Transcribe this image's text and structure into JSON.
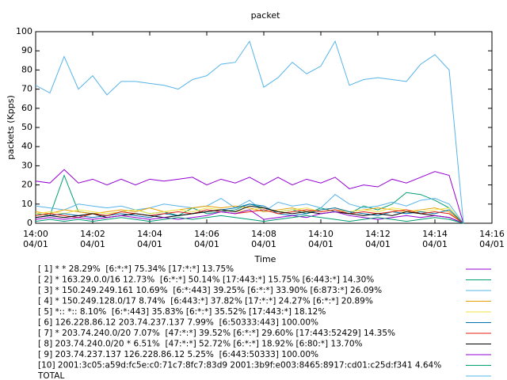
{
  "chart_data": {
    "type": "line",
    "title": "packet",
    "xlabel": "Time",
    "ylabel": "packets (Kpps)",
    "x": [
      0,
      0.5,
      1,
      1.5,
      2,
      2.5,
      3,
      3.5,
      4,
      4.5,
      5,
      5.5,
      6,
      6.5,
      7,
      7.5,
      8,
      8.5,
      9,
      9.5,
      10,
      10.5,
      11,
      11.5,
      12,
      12.5,
      13,
      13.5,
      14,
      14.5,
      15
    ],
    "xlim": [
      0,
      16
    ],
    "xticks": [
      {
        "value": 0,
        "label": "14:00\n04/01"
      },
      {
        "value": 2,
        "label": "14:02\n04/01"
      },
      {
        "value": 4,
        "label": "14:04\n04/01"
      },
      {
        "value": 6,
        "label": "14:06\n04/01"
      },
      {
        "value": 8,
        "label": "14:08\n04/01"
      },
      {
        "value": 10,
        "label": "14:10\n04/01"
      },
      {
        "value": 12,
        "label": "14:12\n04/01"
      },
      {
        "value": 14,
        "label": "14:14\n04/01"
      },
      {
        "value": 16,
        "label": "14:16\n04/01"
      }
    ],
    "ylim": [
      0,
      100
    ],
    "yticks": [
      0,
      10,
      20,
      30,
      40,
      50,
      60,
      70,
      80,
      90,
      100
    ],
    "series": [
      {
        "name": "[ 1] * * 28.29%  [6:*:*] 75.34% [17:*:*] 13.75%",
        "color": "#9400d3",
        "values": [
          22,
          21,
          28,
          21,
          23,
          20,
          23,
          20,
          23,
          22,
          23,
          24,
          20,
          23,
          21,
          24,
          20,
          24,
          20,
          23,
          21,
          24,
          18,
          20,
          19,
          23,
          21,
          24,
          27,
          25,
          0
        ]
      },
      {
        "name": "[ 2] * 163.29.0.0/16 12.73%  [6:*:*] 50.14% [17:443:*] 15.75% [6:443:*] 14.30%",
        "color": "#009e73",
        "values": [
          5,
          4,
          25,
          6,
          5,
          4,
          6,
          7,
          5,
          6,
          4,
          8,
          5,
          6,
          7,
          10,
          8,
          6,
          7,
          5,
          8,
          6,
          5,
          9,
          7,
          10,
          16,
          15,
          12,
          8,
          0
        ]
      },
      {
        "name": "[ 3] * 150.249.249.161 10.69%  [6:*:443] 39.25% [6:*:*] 33.90% [6:873:*] 26.09%",
        "color": "#56b4e9",
        "values": [
          9,
          8,
          7,
          10,
          9,
          8,
          9,
          7,
          8,
          10,
          9,
          8,
          9,
          13,
          8,
          12,
          6,
          11,
          9,
          10,
          8,
          15,
          10,
          8,
          9,
          11,
          9,
          12,
          13,
          10,
          0
        ]
      },
      {
        "name": "[ 4] * 150.249.128.0/17 8.74%  [6:443:*] 37.82% [17:*:*] 24.27% [6:*:*] 20.89%",
        "color": "#e69f00",
        "values": [
          6,
          5,
          7,
          6,
          5,
          6,
          7,
          6,
          8,
          6,
          7,
          8,
          9,
          8,
          9,
          8,
          6,
          7,
          8,
          6,
          7,
          8,
          6,
          7,
          8,
          7,
          6,
          7,
          8,
          6,
          0
        ]
      },
      {
        "name": "[ 5] *:: *:: 8.10%  [6:*:443] 35.83% [6:*:*] 35.52% [17:443:*] 18.12%",
        "color": "#f0e442",
        "values": [
          5,
          6,
          5,
          7,
          6,
          5,
          6,
          7,
          5,
          6,
          7,
          6,
          8,
          7,
          6,
          7,
          8,
          6,
          7,
          8,
          6,
          7,
          6,
          7,
          6,
          8,
          7,
          6,
          7,
          8,
          0
        ]
      },
      {
        "name": "[ 6] 126.228.86.12 203.74.237.137 7.99%  [6:50333:443] 100.00%",
        "color": "#0072b2",
        "values": [
          3,
          4,
          5,
          4,
          3,
          4,
          5,
          4,
          3,
          5,
          4,
          5,
          6,
          7,
          8,
          10,
          9,
          5,
          4,
          5,
          7,
          8,
          6,
          5,
          4,
          6,
          5,
          6,
          5,
          7,
          0
        ]
      },
      {
        "name": "[ 7] * 203.74.240.0/20 7.07%  [47:*:*] 39.52% [6:*:*] 29.60% [17:443:52429] 14.35%",
        "color": "#e51e10",
        "values": [
          4,
          5,
          4,
          3,
          5,
          4,
          6,
          5,
          4,
          5,
          6,
          5,
          7,
          6,
          5,
          6,
          7,
          5,
          6,
          7,
          6,
          7,
          5,
          6,
          5,
          6,
          7,
          5,
          6,
          5,
          0
        ]
      },
      {
        "name": "[ 8] 203.74.240.0/20 * 6.51%  [47:*:*] 52.72% [6:*:*] 18.92% [6:80:*] 13.70%",
        "color": "#000000",
        "values": [
          3,
          4,
          3,
          4,
          5,
          3,
          4,
          5,
          4,
          3,
          4,
          5,
          6,
          7,
          6,
          9,
          8,
          6,
          5,
          6,
          5,
          6,
          5,
          4,
          5,
          4,
          6,
          5,
          4,
          3,
          0
        ]
      },
      {
        "name": "[ 9] 203.74.237.137 126.228.86.12 5.25%  [6:443:50333] 100.00%",
        "color": "#9400d3",
        "values": [
          2,
          3,
          2,
          3,
          2,
          3,
          4,
          3,
          2,
          3,
          2,
          3,
          4,
          6,
          5,
          7,
          2,
          3,
          4,
          3,
          5,
          6,
          4,
          3,
          2,
          3,
          4,
          3,
          4,
          3,
          0
        ]
      },
      {
        "name": "[10] 2001:3c05:a59d:fc5e:c0:71c7:8fc7:83d9 2001:3b9f:e003:8465:8917:cd01:c25d:f341 4.64%",
        "color": "#009e73",
        "values": [
          1,
          2,
          1,
          2,
          1,
          2,
          3,
          2,
          1,
          2,
          3,
          2,
          3,
          4,
          3,
          2,
          1,
          2,
          3,
          4,
          3,
          2,
          1,
          2,
          3,
          2,
          1,
          2,
          3,
          2,
          0
        ]
      },
      {
        "name": "TOTAL",
        "color": "#56b4e9",
        "values": [
          72,
          68,
          87,
          70,
          77,
          67,
          74,
          74,
          73,
          72,
          70,
          75,
          77,
          83,
          84,
          95,
          71,
          76,
          84,
          78,
          82,
          95,
          72,
          75,
          76,
          75,
          74,
          83,
          88,
          80,
          0
        ]
      }
    ]
  }
}
